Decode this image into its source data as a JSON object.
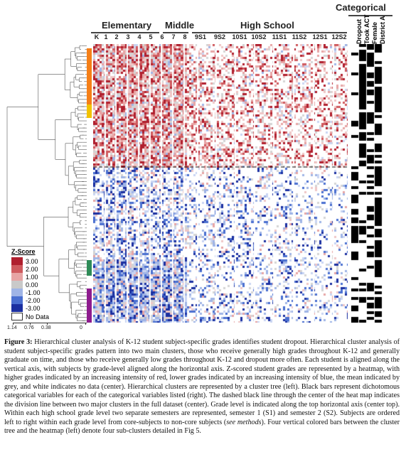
{
  "figure": {
    "group_labels": {
      "elementary": "Elementary",
      "middle": "Middle",
      "high_school": "High School",
      "categorical": "Categorical"
    },
    "grade_labels": [
      "K",
      "1",
      "2",
      "3",
      "4",
      "5",
      "6",
      "7",
      "8",
      "9S1",
      "9S2",
      "10S1",
      "10S2",
      "11S1",
      "11S2",
      "12S1",
      "12S2"
    ],
    "categorical_labels": [
      "Dropout",
      "Took ACT",
      "Female",
      "District A"
    ],
    "legend": {
      "title": "Z-Score",
      "entries": [
        {
          "label": "3.00",
          "color": "#b01f2e"
        },
        {
          "label": "2.00",
          "color": "#cf5a5e"
        },
        {
          "label": "1.00",
          "color": "#e7a4a4"
        },
        {
          "label": "0.00",
          "color": "#c9c9c9"
        },
        {
          "label": "-1.00",
          "color": "#9fb4e6"
        },
        {
          "label": "-2.00",
          "color": "#4a6fd0"
        },
        {
          "label": "-3.00",
          "color": "#1b2fa0"
        }
      ],
      "no_data_label": "No Data"
    },
    "tree_axis_ticks": [
      "1.14",
      "0.76",
      "0.38",
      "0"
    ],
    "cluster_bar_colors": [
      "#f57f17",
      "#f2c200",
      "#2e8b57",
      "#8e1b8e"
    ]
  },
  "caption": {
    "label": "Figure 3:",
    "text": "Hierarchical cluster analysis of K-12 student subject-specific grades identifies student dropout. Hierarchical cluster analysis of student subject-specific grades pattern into two main clusters, those who receive generally high grades throughout K-12 and generally graduate on time, and those who receive generally low grades throughout K-12 and dropout more often. Each student is aligned along the vertical axis, with subjects by grade-level aligned along the horizontal axis. Z-scored student grades are represented by a heatmap, with higher grades indicated by an increasing intensity of red, lower grades indicated by an increasing intensity of blue, the mean indicated by grey, and white indicates no data (center). Hierarchical clusters are represented by a cluster tree (left). Black bars represent dichotomous categorical variables for each of the categorical variables listed (right). The dashed black line through the center of the heat map indicates the division line between two major clusters in the full dataset (center). Grade level is indicated along the top horizontal axis (center top). Within each high school grade level two separate semesters are represented, semester 1 (S1) and semester 2 (S2). Subjects are ordered left to right within each grade level from core-subjects to non-core subjects (",
    "see_methods": "see methods",
    "text_end": "). Four vertical colored bars between the cluster tree and the heatmap (left) denote four sub-clusters detailed in Fig 5."
  }
}
